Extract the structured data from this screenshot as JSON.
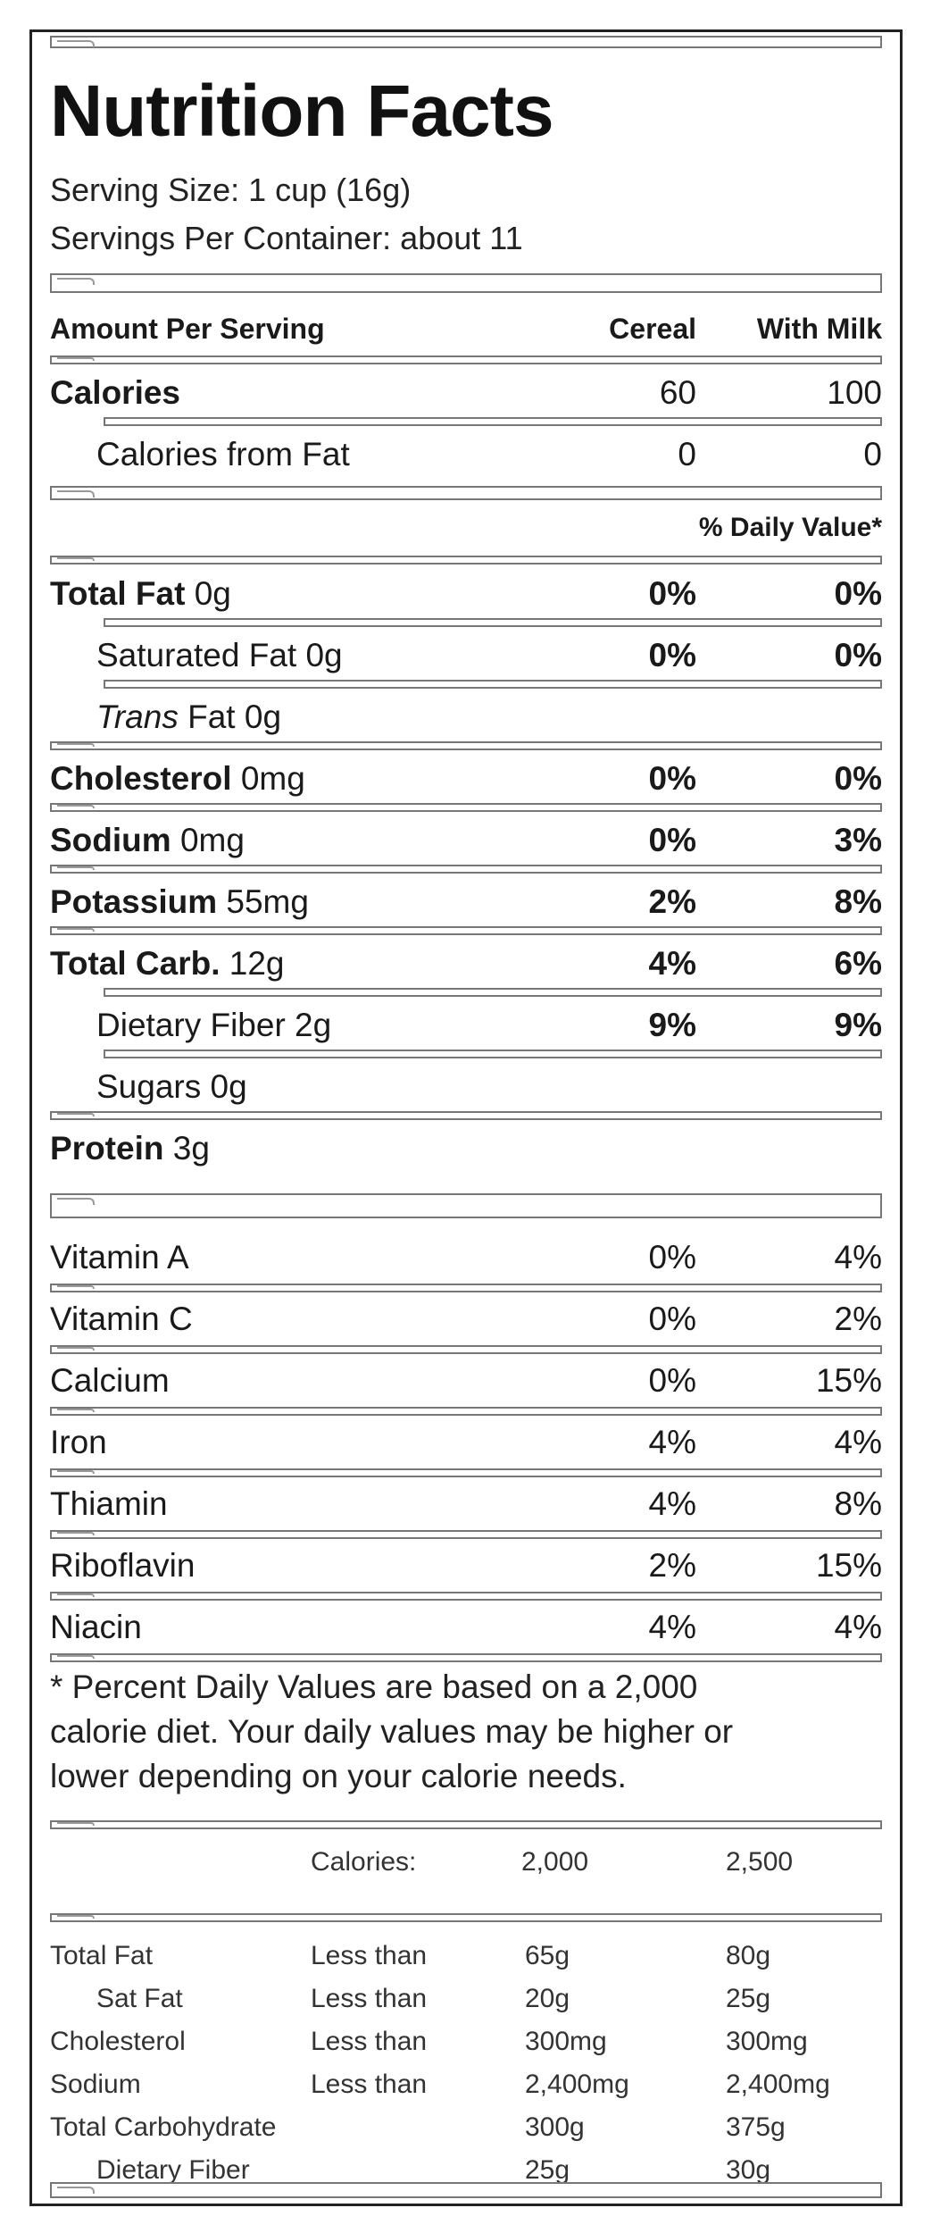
{
  "title": "Nutrition Facts",
  "serving_size": "Serving Size: 1 cup (16g)",
  "servings_per_container": "Servings Per Container: about 11",
  "header": {
    "amount": "Amount Per Serving",
    "col1": "Cereal",
    "col2": "With Milk"
  },
  "calories": {
    "label": "Calories",
    "cereal": "60",
    "milk": "100"
  },
  "calories_fat": {
    "label": "Calories from Fat",
    "cereal": "0",
    "milk": "0"
  },
  "dv_header": "% Daily Value*",
  "nutrients": [
    {
      "bold": "Total Fat",
      "rest": " 0g",
      "cereal": "0%",
      "milk": "0%"
    },
    {
      "label": "Saturated Fat 0g",
      "cereal": "0%",
      "milk": "0%"
    },
    {
      "italic": "Trans",
      "rest": " Fat 0g",
      "cereal": "",
      "milk": ""
    },
    {
      "bold": "Cholesterol",
      "rest": " 0mg",
      "cereal": "0%",
      "milk": "0%"
    },
    {
      "bold": "Sodium",
      "rest": " 0mg",
      "cereal": "0%",
      "milk": "3%"
    },
    {
      "bold": "Potassium",
      "rest": " 55mg",
      "cereal": "2%",
      "milk": "8%"
    },
    {
      "bold": "Total Carb.",
      "rest": " 12g",
      "cereal": "4%",
      "milk": "6%"
    },
    {
      "label": "Dietary Fiber 2g",
      "cereal": "9%",
      "milk": "9%"
    },
    {
      "label": "Sugars 0g",
      "cereal": "",
      "milk": ""
    },
    {
      "bold": "Protein",
      "rest": " 3g",
      "cereal": "",
      "milk": ""
    }
  ],
  "vitamins": [
    {
      "label": "Vitamin A",
      "cereal": "0%",
      "milk": "4%"
    },
    {
      "label": "Vitamin C",
      "cereal": "0%",
      "milk": "2%"
    },
    {
      "label": "Calcium",
      "cereal": "0%",
      "milk": "15%"
    },
    {
      "label": "Iron",
      "cereal": "4%",
      "milk": "4%"
    },
    {
      "label": "Thiamin",
      "cereal": "4%",
      "milk": "8%"
    },
    {
      "label": "Riboflavin",
      "cereal": "2%",
      "milk": "15%"
    },
    {
      "label": "Niacin",
      "cereal": "4%",
      "milk": "4%"
    }
  ],
  "footnote": {
    "line1": "* Percent Daily Values are based on a 2,000",
    "line2": "calorie diet. Your daily values may be higher or",
    "line3": "lower depending on your calorie needs."
  },
  "dv_table": {
    "calories_label": "Calories:",
    "cal1": "2,000",
    "cal2": "2,500",
    "rows": [
      {
        "name": "Total Fat",
        "limit": "Less than",
        "v1": "65g",
        "v2": "80g"
      },
      {
        "name": "Sat Fat",
        "limit": "Less than",
        "v1": "20g",
        "v2": "25g"
      },
      {
        "name": "Cholesterol",
        "limit": "Less than",
        "v1": "300mg",
        "v2": "300mg"
      },
      {
        "name": "Sodium",
        "limit": "Less than",
        "v1": "2,400mg",
        "v2": "2,400mg"
      },
      {
        "name": "Total Carbohydrate",
        "limit": "",
        "v1": "300g",
        "v2": "375g"
      },
      {
        "name": "Dietary Fiber",
        "limit": "",
        "v1": "25g",
        "v2": "30g"
      }
    ]
  }
}
